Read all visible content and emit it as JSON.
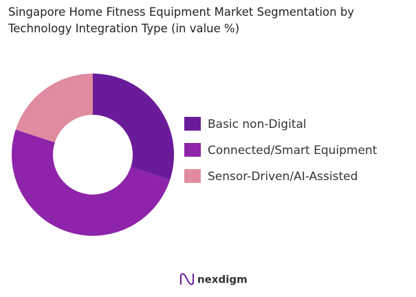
{
  "chart_data": {
    "type": "donut",
    "title": "Singapore Home Fitness Equipment Market Segmentation by Technology Integration Type (in value %)",
    "categories": [
      "Basic non-Digital",
      "Connected/Smart Equipment",
      "Sensor-Driven/AI-Assisted"
    ],
    "values": [
      30,
      50,
      20
    ],
    "colors": [
      "#6a1b9a",
      "#8e24aa",
      "#e08b9f"
    ],
    "legend": "right"
  },
  "footer": {
    "logo": "nexdigm"
  }
}
